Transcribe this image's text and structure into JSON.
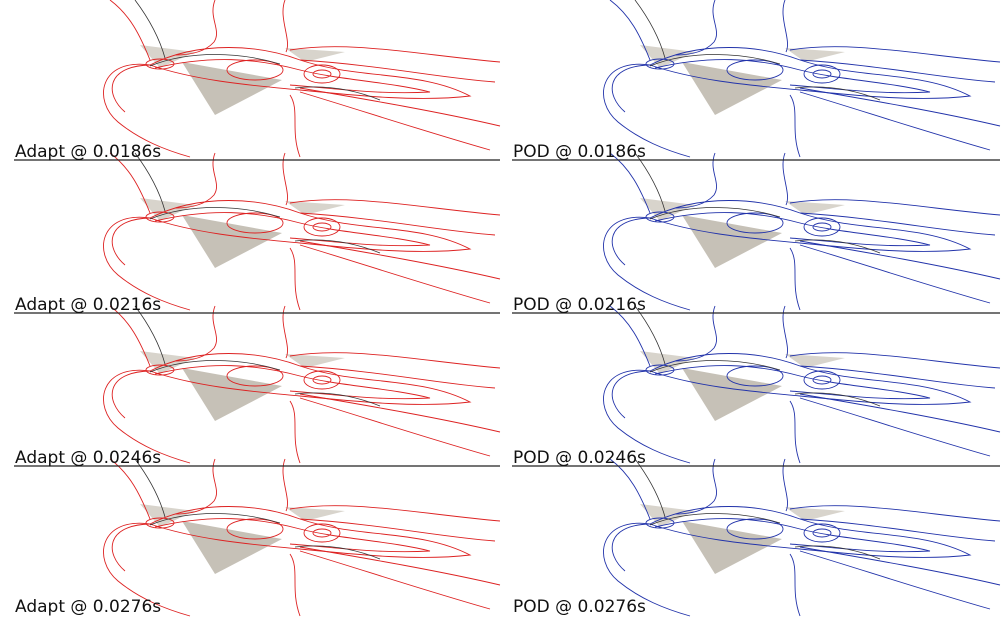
{
  "rows": [
    {
      "adapt": "Adapt @ 0.0186s",
      "pod": "POD @ 0.0186s"
    },
    {
      "adapt": "Adapt @ 0.0216s",
      "pod": "POD @ 0.0216s"
    },
    {
      "adapt": "Adapt @ 0.0246s",
      "pod": "POD @ 0.0246s"
    },
    {
      "adapt": "Adapt @ 0.0276s",
      "pod": "POD @ 0.0276s"
    }
  ]
}
